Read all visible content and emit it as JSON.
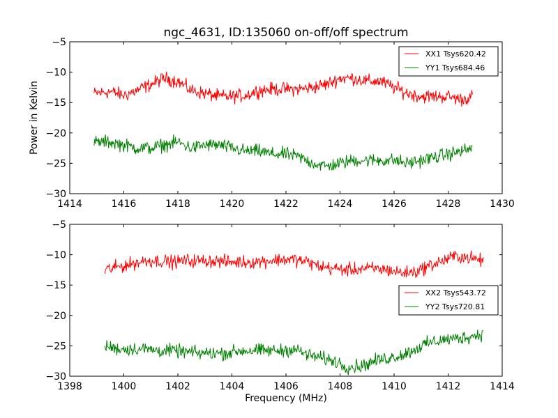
{
  "figure": {
    "title": "ngc_4631, ID:135060 on-off/off spectrum",
    "ylabel": "Power in Kelvin",
    "xlabel": "Frequency (MHz)"
  },
  "chart_data": [
    {
      "type": "line",
      "title": "ngc_4631, ID:135060 on-off/off spectrum",
      "ylabel": "Power in Kelvin",
      "xlabel": "",
      "xlim": [
        1414,
        1430
      ],
      "ylim": [
        -30,
        -5
      ],
      "xticks": [
        1414,
        1416,
        1418,
        1420,
        1422,
        1424,
        1426,
        1428,
        1430
      ],
      "yticks": [
        -5,
        -10,
        -15,
        -20,
        -25,
        -30
      ],
      "grid": false,
      "legend": "top-right",
      "series": [
        {
          "name": "XX1 Tsys620.42",
          "color": "#ff0000",
          "x": [
            1414.9,
            1415.5,
            1416,
            1416.5,
            1417,
            1417.5,
            1418,
            1418.5,
            1419,
            1419.5,
            1420,
            1420.5,
            1421,
            1421.5,
            1422,
            1422.5,
            1423,
            1423.5,
            1424,
            1424.5,
            1425,
            1425.5,
            1426,
            1426.5,
            1427,
            1427.5,
            1428,
            1428.5,
            1428.9
          ],
          "y": [
            -13.5,
            -13.2,
            -13.8,
            -13,
            -12,
            -11,
            -11.5,
            -13,
            -13.5,
            -14,
            -14,
            -13.8,
            -13,
            -12.8,
            -12.8,
            -12.8,
            -12.5,
            -12,
            -11,
            -11,
            -11.5,
            -11.5,
            -12.5,
            -13.5,
            -14,
            -14,
            -14,
            -14.5,
            -14
          ]
        },
        {
          "name": "YY1 Tsys684.46",
          "color": "#008000",
          "x": [
            1414.9,
            1415.5,
            1416,
            1416.5,
            1417,
            1417.5,
            1418,
            1418.5,
            1419,
            1419.5,
            1420,
            1420.5,
            1421,
            1421.5,
            1422,
            1422.5,
            1423,
            1423.5,
            1424,
            1424.5,
            1425,
            1425.5,
            1426,
            1426.5,
            1427,
            1427.5,
            1428,
            1428.5,
            1428.9
          ],
          "y": [
            -21.5,
            -21.5,
            -22,
            -22.5,
            -22.5,
            -22,
            -21.5,
            -22.5,
            -22,
            -22,
            -22.5,
            -23,
            -23,
            -23.5,
            -23.5,
            -24,
            -25,
            -25.5,
            -25,
            -24.5,
            -24.5,
            -24.5,
            -24.5,
            -25,
            -24.5,
            -24,
            -23.5,
            -23,
            -22.5
          ]
        }
      ]
    },
    {
      "type": "line",
      "title": "",
      "ylabel": "",
      "xlabel": "Frequency (MHz)",
      "xlim": [
        1398,
        1414
      ],
      "ylim": [
        -30,
        -5
      ],
      "xticks": [
        1398,
        1400,
        1402,
        1404,
        1406,
        1408,
        1410,
        1412,
        1414
      ],
      "yticks": [
        -5,
        -10,
        -15,
        -20,
        -25,
        -30
      ],
      "grid": false,
      "legend": "right",
      "series": [
        {
          "name": "XX2 Tsys543.72",
          "color": "#ff0000",
          "x": [
            1399.3,
            1399.8,
            1400.3,
            1400.8,
            1401.3,
            1401.8,
            1402.3,
            1402.8,
            1403.3,
            1403.8,
            1404.3,
            1404.8,
            1405.3,
            1405.8,
            1406.3,
            1406.8,
            1407.3,
            1407.8,
            1408.3,
            1408.8,
            1409.3,
            1409.8,
            1410.3,
            1410.8,
            1411.3,
            1411.8,
            1412.3,
            1412.8,
            1413.3
          ],
          "y": [
            -12.5,
            -12,
            -11.5,
            -11,
            -11,
            -11.2,
            -11,
            -11,
            -11,
            -11.2,
            -11.2,
            -11.2,
            -11,
            -10.8,
            -10.8,
            -11.2,
            -12,
            -12.3,
            -12.5,
            -12.3,
            -12.3,
            -12.5,
            -13,
            -12.8,
            -11.8,
            -11,
            -10.2,
            -10.5,
            -11
          ]
        },
        {
          "name": "YY2 Tsys720.81",
          "color": "#008000",
          "x": [
            1399.3,
            1399.8,
            1400.3,
            1400.8,
            1401.3,
            1401.8,
            1402.3,
            1402.8,
            1403.3,
            1403.8,
            1404.3,
            1404.8,
            1405.3,
            1405.8,
            1406.3,
            1406.8,
            1407.3,
            1407.8,
            1408.3,
            1408.8,
            1409.3,
            1409.8,
            1410.3,
            1410.8,
            1411.3,
            1411.8,
            1412.3,
            1412.8,
            1413.3
          ],
          "y": [
            -25,
            -25.5,
            -25.5,
            -25.5,
            -25.8,
            -25.8,
            -26,
            -26.2,
            -26.2,
            -26.2,
            -25.8,
            -25.8,
            -25.8,
            -25.8,
            -25.5,
            -26.5,
            -27,
            -27.5,
            -28.5,
            -28.3,
            -27.5,
            -27,
            -26.5,
            -25.5,
            -24.5,
            -24,
            -23.8,
            -23.5,
            -23
          ]
        }
      ]
    }
  ]
}
